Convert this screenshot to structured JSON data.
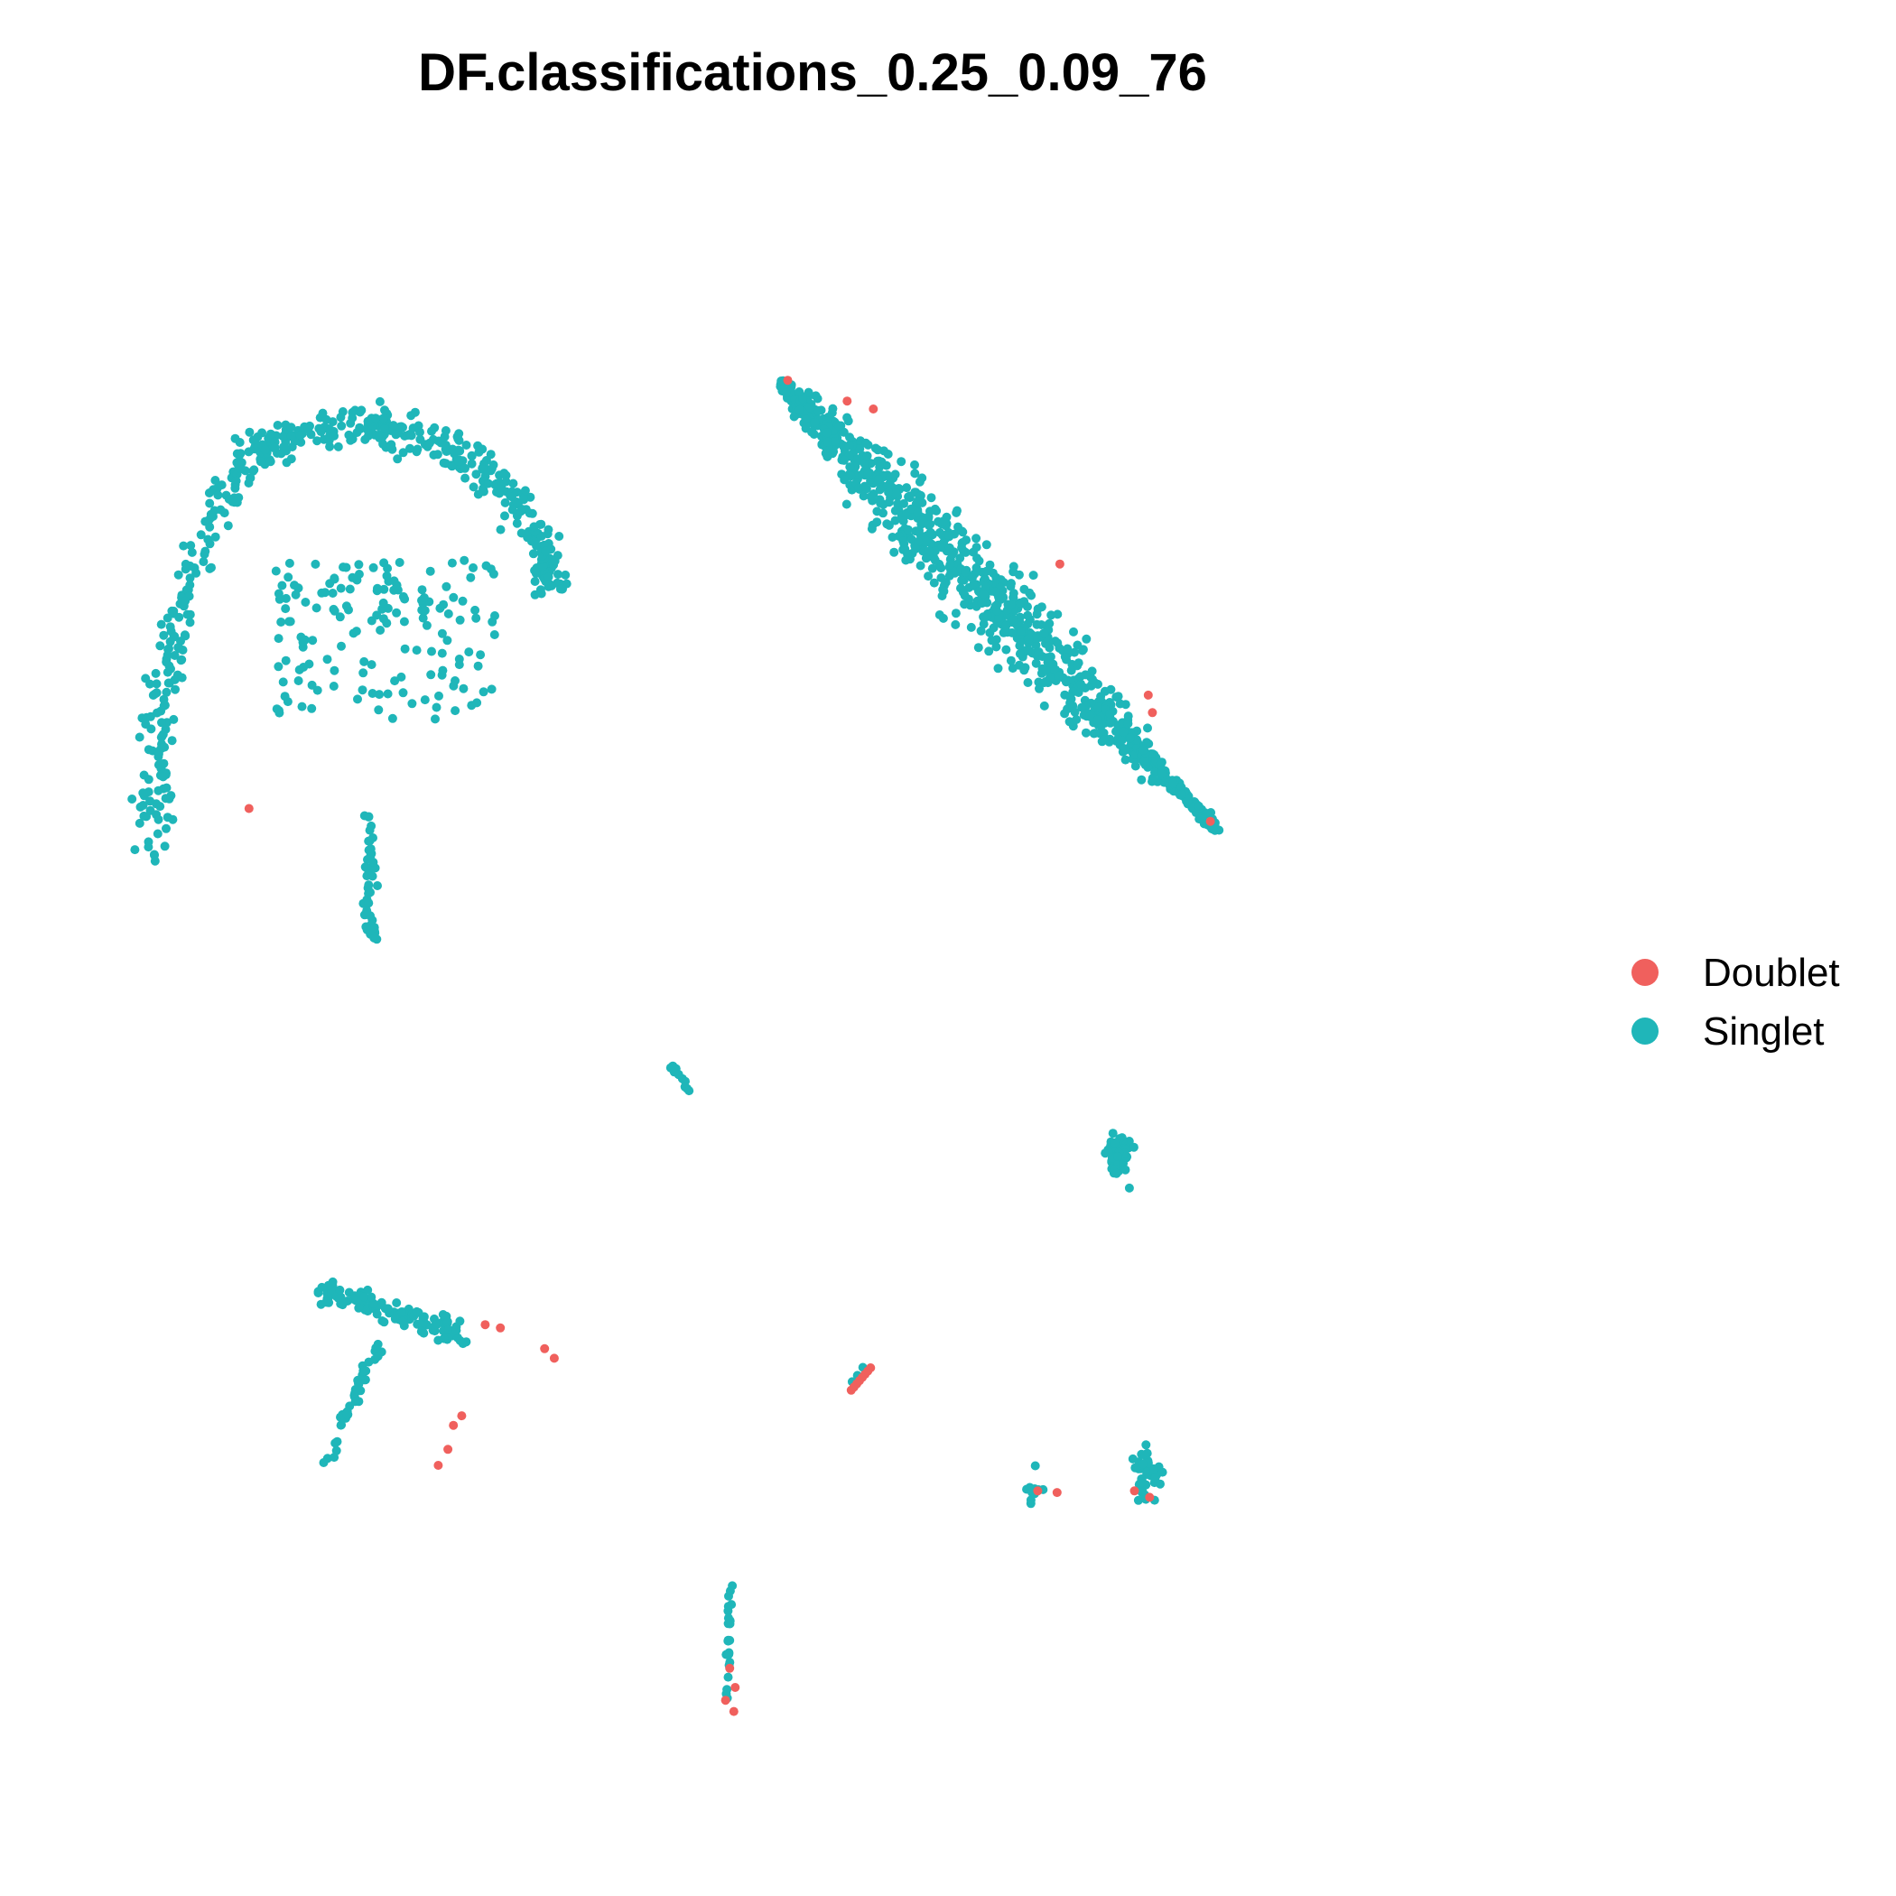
{
  "chart_data": {
    "type": "scatter",
    "title": "DF.classifications_0.25_0.09_76",
    "xlabel": "",
    "ylabel": "",
    "axes_visible": false,
    "grid": false,
    "legend_position": "right",
    "series": [
      {
        "name": "Doublet",
        "color": "#F0605D"
      },
      {
        "name": "Singlet",
        "color": "#1FB6B9"
      }
    ],
    "xlim": [
      0,
      100
    ],
    "ylim": [
      0,
      100
    ],
    "singlet_clusters": [
      {
        "shape": "arc",
        "cx": 17.0,
        "cy": 76.0,
        "count": 720
      },
      {
        "shape": "band",
        "x0": 47.7,
        "y0": 89.0,
        "x1": 79.2,
        "y1": 61.2,
        "count": 950
      },
      {
        "shape": "blob",
        "cx": 72.2,
        "cy": 40.8,
        "count": 55
      },
      {
        "shape": "line",
        "x0": 39.7,
        "y0": 46.4,
        "x1": 41.2,
        "y1": 44.6,
        "count": 14
      },
      {
        "shape": "vee",
        "count": 160
      },
      {
        "shape": "blob",
        "cx": 74.3,
        "cy": 20.7,
        "count": 45
      },
      {
        "shape": "blob",
        "cx": 65.8,
        "cy": 19.6,
        "count": 10
      },
      {
        "shape": "line",
        "x0": 44.0,
        "y0": 13.8,
        "x1": 43.9,
        "y1": 6.4,
        "count": 24
      },
      {
        "shape": "line",
        "x0": 52.4,
        "y0": 26.0,
        "x1": 53.8,
        "y1": 27.5,
        "count": 3
      }
    ],
    "doublet_points": [
      [
        9.2,
        62.4
      ],
      [
        48.2,
        89.2
      ],
      [
        52.5,
        87.9
      ],
      [
        54.4,
        87.4
      ],
      [
        67.9,
        77.7
      ],
      [
        74.3,
        69.5
      ],
      [
        74.6,
        68.4
      ],
      [
        78.8,
        61.6
      ],
      [
        26.3,
        30.1
      ],
      [
        27.4,
        29.9
      ],
      [
        30.6,
        28.6
      ],
      [
        31.3,
        28.0
      ],
      [
        24.6,
        24.4
      ],
      [
        24.0,
        23.8
      ],
      [
        23.6,
        22.3
      ],
      [
        22.9,
        21.3
      ],
      [
        52.8,
        26.0
      ],
      [
        53.0,
        26.2
      ],
      [
        53.2,
        26.4
      ],
      [
        53.4,
        26.6
      ],
      [
        53.6,
        26.8
      ],
      [
        53.8,
        27.0
      ],
      [
        54.0,
        27.2
      ],
      [
        54.2,
        27.4
      ],
      [
        66.3,
        19.7
      ],
      [
        67.7,
        19.6
      ],
      [
        73.3,
        19.7
      ],
      [
        74.4,
        19.3
      ],
      [
        44.0,
        8.6
      ],
      [
        44.4,
        7.4
      ],
      [
        43.7,
        6.6
      ],
      [
        44.3,
        5.9
      ]
    ]
  },
  "legend": {
    "items": [
      {
        "label": "Doublet",
        "color": "#F0605D"
      },
      {
        "label": "Singlet",
        "color": "#1FB6B9"
      }
    ]
  }
}
